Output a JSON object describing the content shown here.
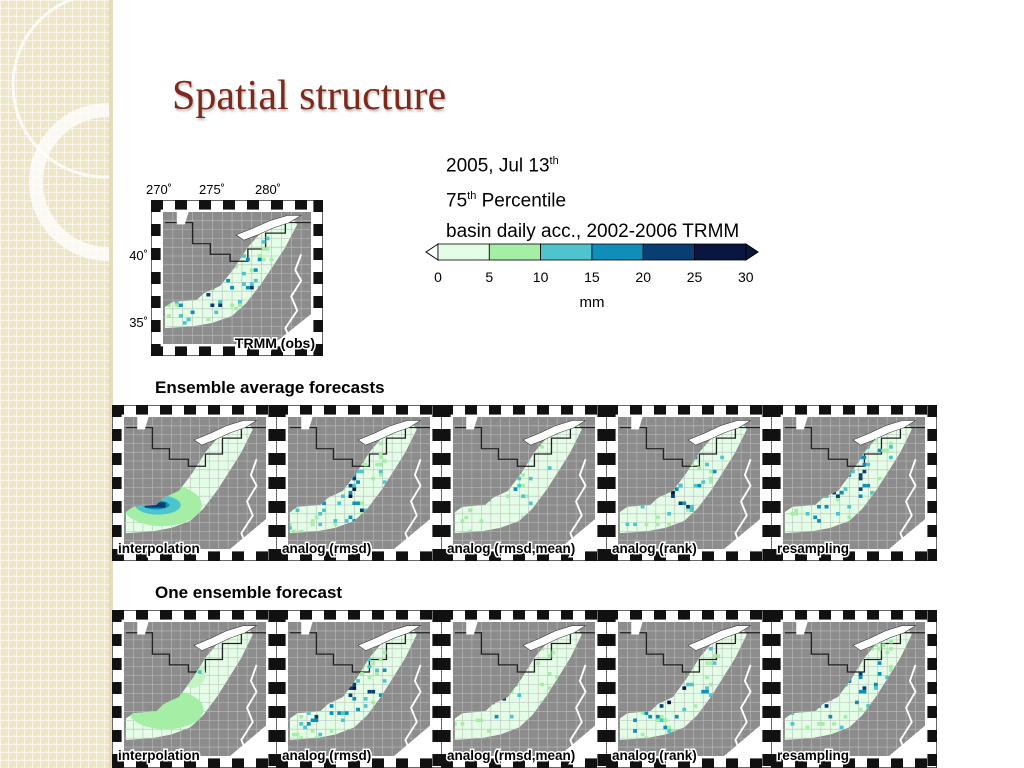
{
  "slide": {
    "title": "Spatial structure",
    "info_line1": "2005, Jul 13",
    "info_line1_sup": "th",
    "info_line2_pre": "75",
    "info_line2_sup": "th",
    "info_line2_post": " Percentile",
    "info_line3": "basin daily acc., 2002-2006 TRMM"
  },
  "obs_map": {
    "lon_ticks": [
      "270˚",
      "275˚",
      "280˚"
    ],
    "lat_ticks": [
      "40˚",
      "35˚"
    ],
    "label": "TRMM (obs)"
  },
  "colorbar": {
    "ticks": [
      "0",
      "5",
      "10",
      "15",
      "20",
      "25",
      "30"
    ],
    "unit": "mm",
    "colors": [
      "#e4fde6",
      "#a5eea5",
      "#4ec5cc",
      "#0e8eb8",
      "#083e72",
      "#0a1640"
    ]
  },
  "sections": [
    {
      "title": "Ensemble average forecasts",
      "maps": [
        "interpolation",
        "analog (rmsd)",
        "analog (rmsd,mean)",
        "analog (rank)",
        "resampling"
      ]
    },
    {
      "title": "One ensemble forecast",
      "maps": [
        "interpolation",
        "analog (rmsd)",
        "analog (rmsd,mean)",
        "analog (rank)",
        "resampling"
      ]
    }
  ]
}
